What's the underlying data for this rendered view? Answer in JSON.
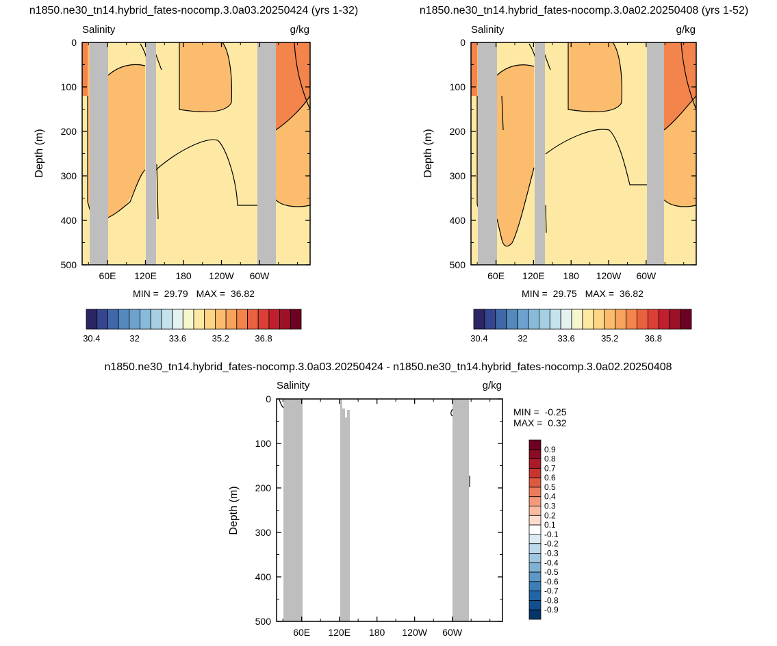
{
  "chart_data": [
    {
      "type": "contour",
      "title": "n1850.ne30_tn14.hybrid_fates-nocomp.3.0a03.20250424 (yrs 1-32)",
      "left_label": "Salinity",
      "right_label": "g/kg",
      "ylabel": "Depth (m)",
      "ylim": [
        0,
        500
      ],
      "y_reversed": true,
      "y_ticks": [
        "0",
        "100",
        "200",
        "300",
        "400",
        "500"
      ],
      "x_ticks": [
        "60E",
        "120E",
        "180",
        "120W",
        "60W"
      ],
      "x_tick_positions_deg": [
        60,
        120,
        180,
        240,
        300
      ],
      "xlim_deg": [
        20,
        380
      ],
      "stats": {
        "min_label": "MIN =",
        "min": "29.79",
        "max_label": "MAX =",
        "max": "36.82"
      },
      "land_bands_deg": [
        [
          32,
          42
        ],
        [
          102,
          107
        ],
        [
          162,
          165
        ],
        [
          276,
          286
        ]
      ],
      "colorbar": {
        "labels": [
          "30.4",
          "32",
          "33.6",
          "35.2",
          "36.8"
        ],
        "label_box_index": [
          0,
          4,
          8,
          12,
          16
        ]
      }
    },
    {
      "type": "contour",
      "title": "n1850.ne30_tn14.hybrid_fates-nocomp.3.0a02.20250408 (yrs 1-52)",
      "left_label": "Salinity",
      "right_label": "g/kg",
      "ylabel": "Depth (m)",
      "ylim": [
        0,
        500
      ],
      "y_reversed": true,
      "y_ticks": [
        "0",
        "100",
        "200",
        "300",
        "400",
        "500"
      ],
      "x_ticks": [
        "60E",
        "120E",
        "180",
        "120W",
        "60W"
      ],
      "x_tick_positions_deg": [
        60,
        120,
        180,
        240,
        300
      ],
      "xlim_deg": [
        20,
        380
      ],
      "stats": {
        "min_label": "MIN =",
        "min": "29.75",
        "max_label": "MAX =",
        "max": "36.82"
      },
      "colorbar": {
        "labels": [
          "30.4",
          "32",
          "33.6",
          "35.2",
          "36.8"
        ],
        "label_box_index": [
          0,
          4,
          8,
          12,
          16
        ]
      }
    },
    {
      "type": "contour",
      "title": "n1850.ne30_tn14.hybrid_fates-nocomp.3.0a03.20250424 - n1850.ne30_tn14.hybrid_fates-nocomp.3.0a02.20250408",
      "left_label": "Salinity",
      "right_label": "g/kg",
      "ylabel": "Depth (m)",
      "ylim": [
        0,
        500
      ],
      "y_reversed": true,
      "y_ticks": [
        "0",
        "100",
        "200",
        "300",
        "400",
        "500"
      ],
      "x_ticks": [
        "60E",
        "120E",
        "180",
        "120W",
        "60W"
      ],
      "x_tick_positions_deg": [
        60,
        120,
        180,
        240,
        300
      ],
      "xlim_deg": [
        20,
        380
      ],
      "stats": {
        "min_label": "MIN =",
        "min": "-0.25",
        "max_label": "MAX =",
        "max": "0.32"
      },
      "colorbar": {
        "labels": [
          "0.9",
          "0.8",
          "0.7",
          "0.6",
          "0.5",
          "0.4",
          "0.3",
          "0.2",
          "0.1",
          "-0.1",
          "-0.2",
          "-0.3",
          "-0.4",
          "-0.5",
          "-0.6",
          "-0.7",
          "-0.8",
          "-0.9"
        ]
      }
    }
  ],
  "palettes": {
    "salinity": [
      "#2b2563",
      "#35458f",
      "#3f68a8",
      "#5489bd",
      "#6ca2cd",
      "#88bbdb",
      "#a6cfe3",
      "#c5e3ec",
      "#e4f2f0",
      "#f7f7cf",
      "#fde9a4",
      "#fcd585",
      "#fbbd6d",
      "#f8a35b",
      "#f3844b",
      "#ea6140",
      "#dc3f36",
      "#c21f2e",
      "#9c1127",
      "#6d0023"
    ],
    "difference": [
      "#6d0023",
      "#8b0a24",
      "#ab1a28",
      "#c8352f",
      "#dc5a40",
      "#ea7b5b",
      "#f39a7c",
      "#f8bba0",
      "#fcdccc",
      "#ffffff",
      "#dcebf3",
      "#bcd9ea",
      "#9fc6e0",
      "#7fb1d3",
      "#5b98c5",
      "#3c7fb7",
      "#2265a4",
      "#124d8c",
      "#063469"
    ],
    "field_fill": {
      "low": "#fde9a4",
      "mid": "#fcd585",
      "high": "#fbbd6d",
      "higher": "#f3844b",
      "highest": "#ea6140",
      "land": "#bebebe"
    }
  }
}
